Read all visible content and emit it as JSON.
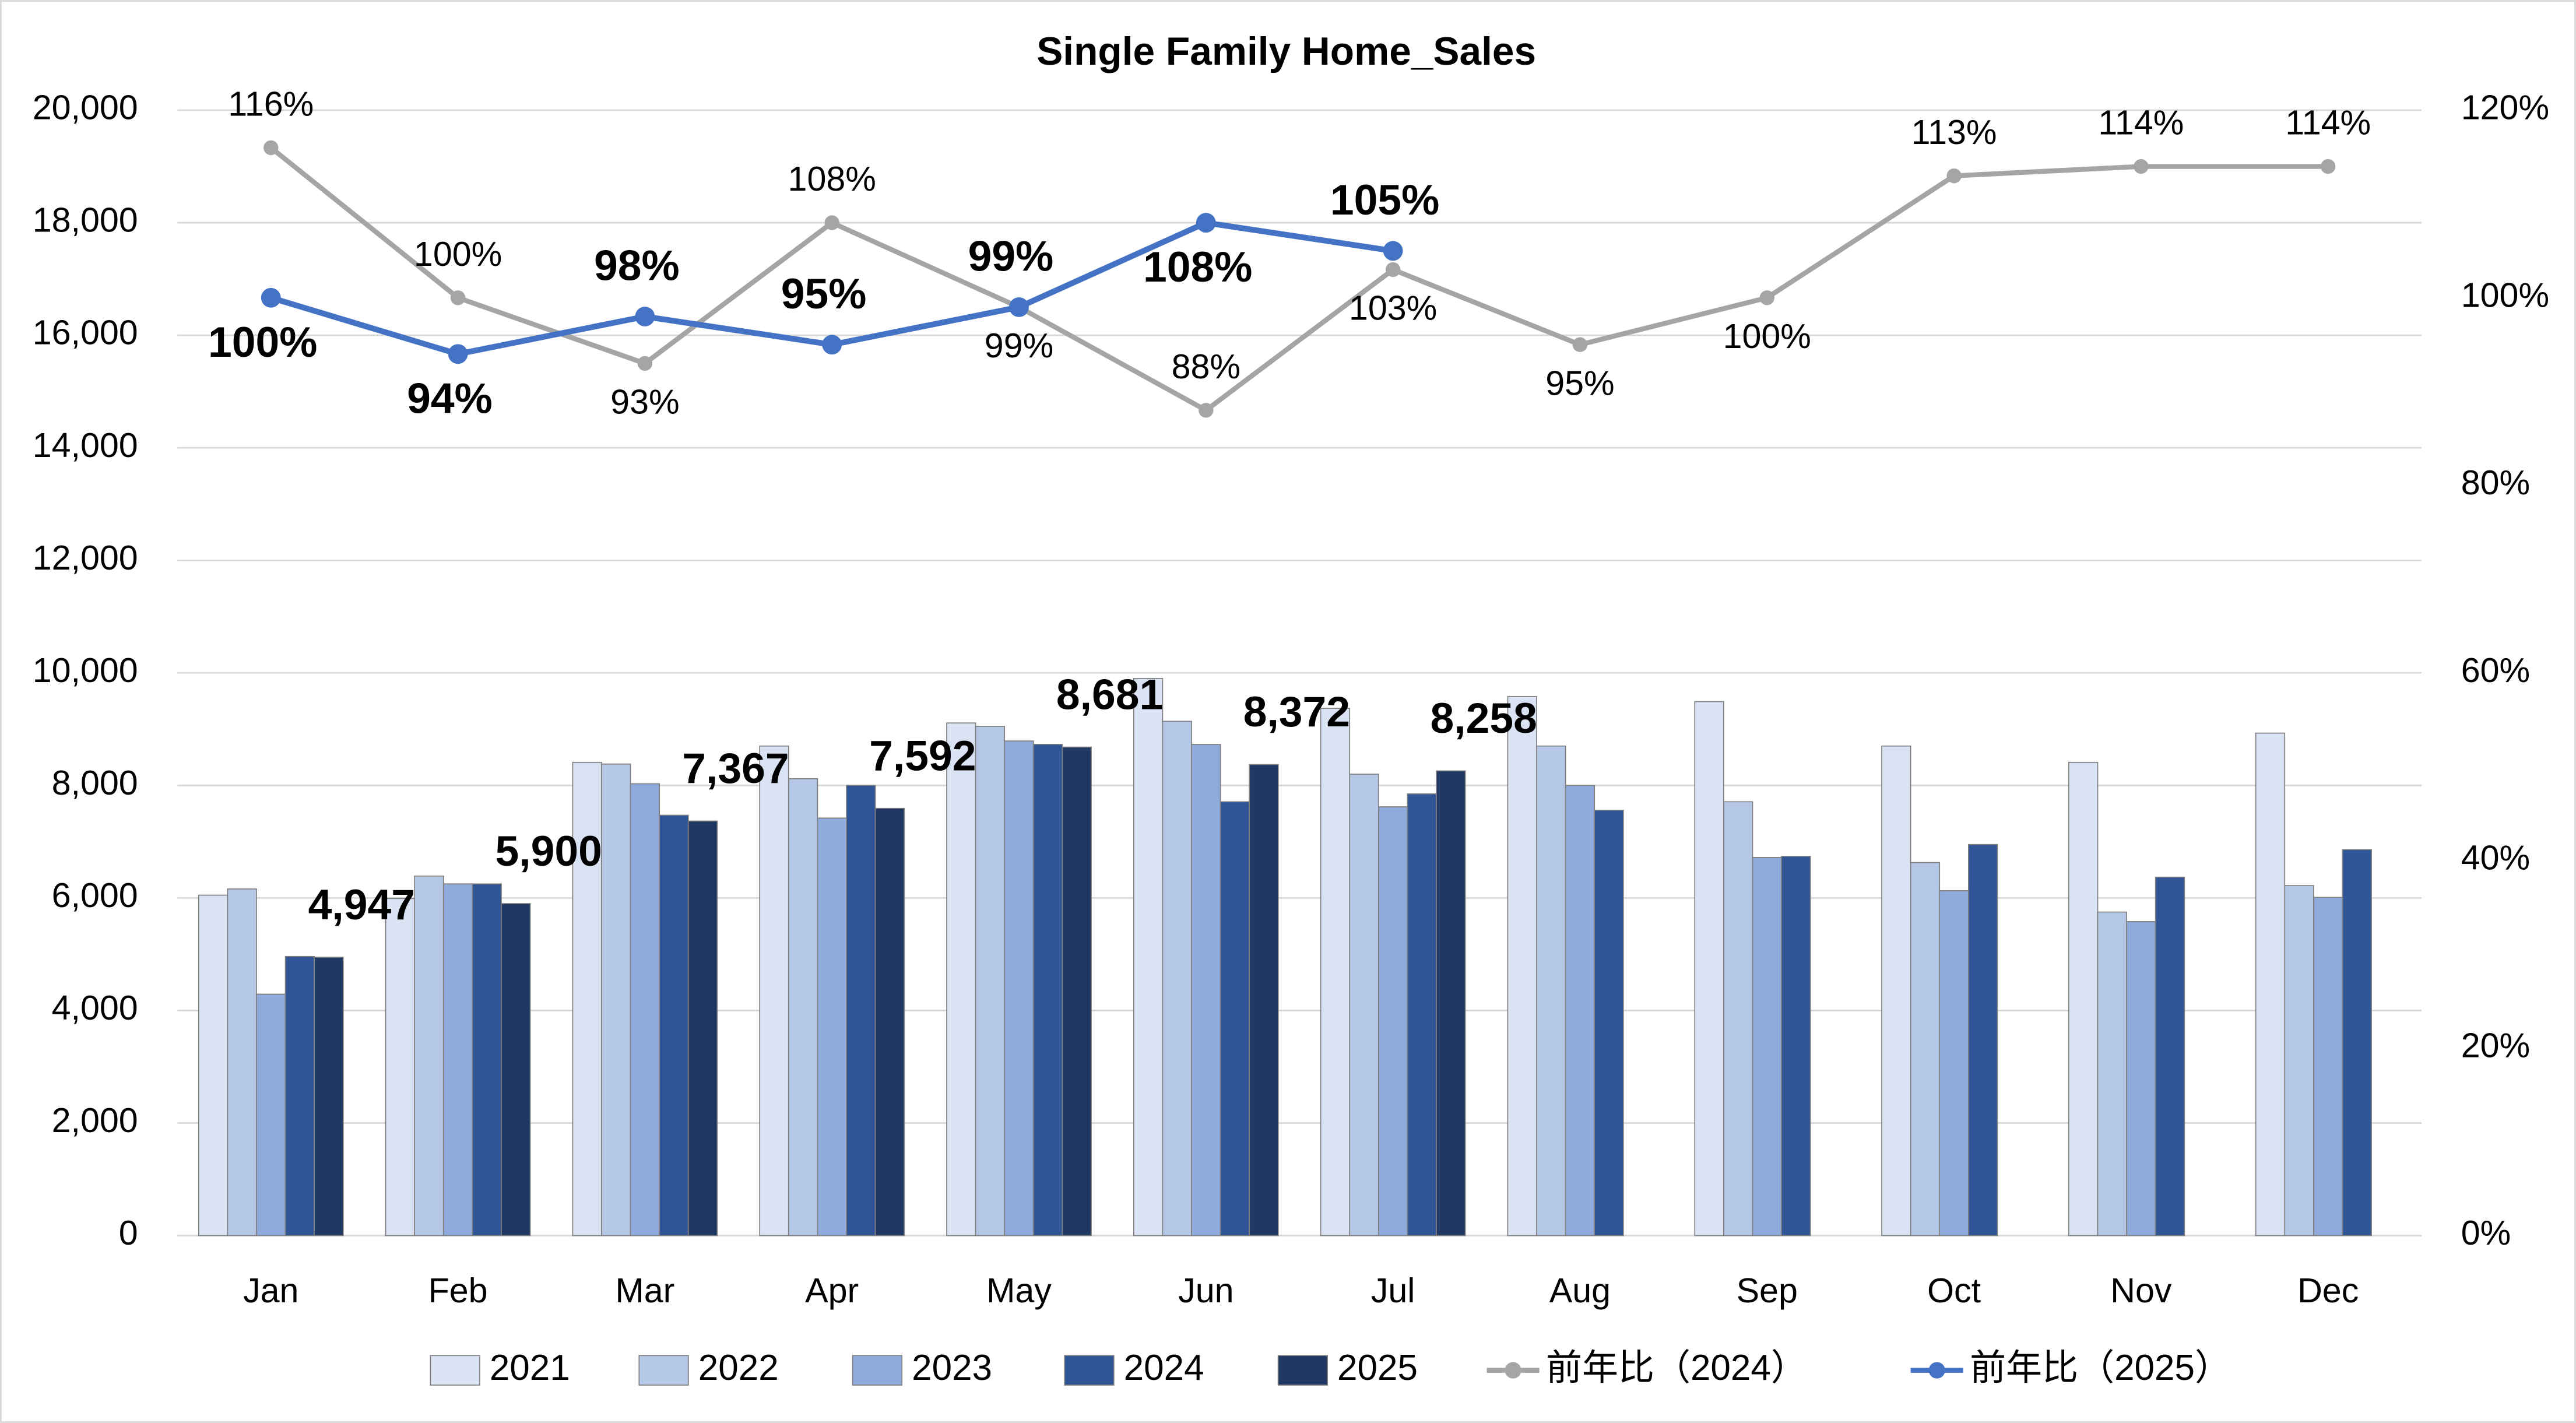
{
  "chart_data": {
    "type": "bar_line",
    "title": "Single Family Home_Sales",
    "categories": [
      "Jan",
      "Feb",
      "Mar",
      "Apr",
      "May",
      "Jun",
      "Jul",
      "Aug",
      "Sep",
      "Oct",
      "Nov",
      "Dec"
    ],
    "series": [
      {
        "name": "2021",
        "color": "#dae3f3",
        "values": [
          6050,
          5990,
          8410,
          8700,
          9110,
          9900,
          9370,
          9580,
          9490,
          8700,
          8410,
          8930
        ]
      },
      {
        "name": "2022",
        "color": "#b4c7e7",
        "values": [
          6160,
          6390,
          8380,
          8120,
          9050,
          9140,
          8200,
          8700,
          7710,
          6630,
          5750,
          6220
        ]
      },
      {
        "name": "2023",
        "color": "#8faadc",
        "values": [
          4290,
          6250,
          8030,
          7420,
          8790,
          8730,
          7620,
          8000,
          6720,
          6130,
          5580,
          6010
        ]
      },
      {
        "name": "2024",
        "color": "#2f5597",
        "values": [
          4960,
          6250,
          7470,
          8000,
          8730,
          7710,
          7850,
          7560,
          6740,
          6950,
          6370,
          6860
        ]
      },
      {
        "name": "2025",
        "color": "#203864",
        "values": [
          4947,
          5900,
          7367,
          7592,
          8681,
          8372,
          8258,
          null,
          null,
          null,
          null,
          null
        ],
        "value_labels": [
          "4,947",
          "5,900",
          "7,367",
          "7,592",
          "8,681",
          "8,372",
          "8,258",
          null,
          null,
          null,
          null,
          null
        ]
      },
      {
        "name": "前年比（2024）",
        "color": "#a5a5a5",
        "axis": "y2",
        "type": "line",
        "values": [
          116,
          100,
          93,
          108,
          99,
          88,
          103,
          95,
          100,
          113,
          114,
          114
        ],
        "value_labels": [
          "116%",
          "100%",
          "93%",
          "108%",
          "99%",
          "88%",
          "103%",
          "95%",
          "100%",
          "113%",
          "114%",
          "114%"
        ]
      },
      {
        "name": "前年比（2025）",
        "color": "#4472c4",
        "axis": "y2",
        "type": "line",
        "values": [
          100,
          94,
          98,
          95,
          99,
          108,
          105,
          null,
          null,
          null,
          null,
          null
        ],
        "value_labels": [
          "100%",
          "94%",
          "98%",
          "95%",
          "99%",
          "108%",
          "105%",
          null,
          null,
          null,
          null,
          null
        ]
      }
    ],
    "ylim": [
      0,
      20000
    ],
    "yticks": [
      0,
      {
        "value": 2000,
        "label": "2,000"
      },
      {
        "value": 4000,
        "label": "4,000"
      },
      {
        "value": 6000,
        "label": "6,000"
      },
      {
        "value": 8000,
        "label": "8,000"
      },
      {
        "value": 10000,
        "label": "10,000"
      },
      {
        "value": 12000,
        "label": "12,000"
      },
      {
        "value": 14000,
        "label": "14,000"
      },
      {
        "value": 16000,
        "label": "16,000"
      },
      {
        "value": 18000,
        "label": "18,000"
      },
      {
        "value": 20000,
        "label": "20,000"
      }
    ],
    "y2lim": [
      0,
      120
    ],
    "y2ticks": [
      {
        "value": 0,
        "label": "0%"
      },
      {
        "value": 20,
        "label": "20%"
      },
      {
        "value": 40,
        "label": "40%"
      },
      {
        "value": 60,
        "label": "60%"
      },
      {
        "value": 80,
        "label": "80%"
      },
      {
        "value": 100,
        "label": "100%"
      },
      {
        "value": 120,
        "label": "120%"
      }
    ],
    "grid": true,
    "legend": "bottom"
  }
}
